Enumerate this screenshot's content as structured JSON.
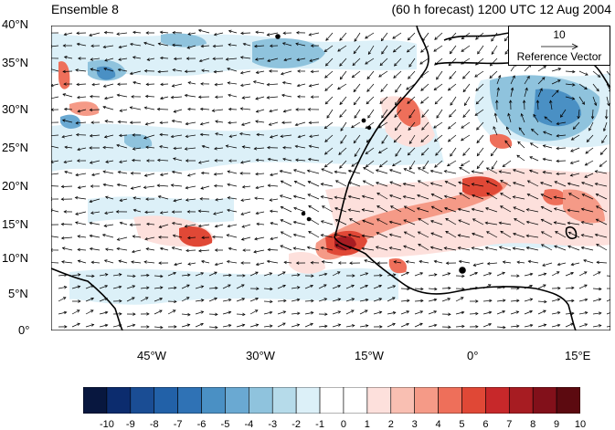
{
  "title": {
    "left": "Ensemble 8",
    "right": "(60 h forecast) 1200 UTC 12 Aug 2004"
  },
  "map": {
    "lon_range": [
      -60,
      20
    ],
    "lat_range": [
      0,
      40
    ],
    "y_ticks": [
      "40°N",
      "35°N",
      "30°N",
      "25°N",
      "20°N",
      "15°N",
      "10°N",
      "5°N",
      "0°"
    ],
    "x_ticks": [
      "45°W",
      "30°W",
      "15°W",
      "0°",
      "15°E"
    ]
  },
  "reference_vector": {
    "value": "10",
    "label": "Reference Vector"
  },
  "colorbar": {
    "labels": [
      "-10",
      "-9",
      "-8",
      "-7",
      "-6",
      "-5",
      "-4",
      "-3",
      "-2",
      "-1",
      "0",
      "1",
      "2",
      "3",
      "4",
      "5",
      "6",
      "7",
      "8",
      "9",
      "10"
    ],
    "colors": [
      "#08173f",
      "#0c2c6e",
      "#1a4d94",
      "#2261a8",
      "#2f72b5",
      "#4a90c4",
      "#6aa9d2",
      "#8fc3dd",
      "#b6dbea",
      "#dcf0f8",
      "#ffffff",
      "#ffffff",
      "#fde0dc",
      "#f9bfb2",
      "#f59a87",
      "#ee6f5a",
      "#e04836",
      "#c7282a",
      "#a71c22",
      "#82101a",
      "#5c0a10"
    ]
  }
}
